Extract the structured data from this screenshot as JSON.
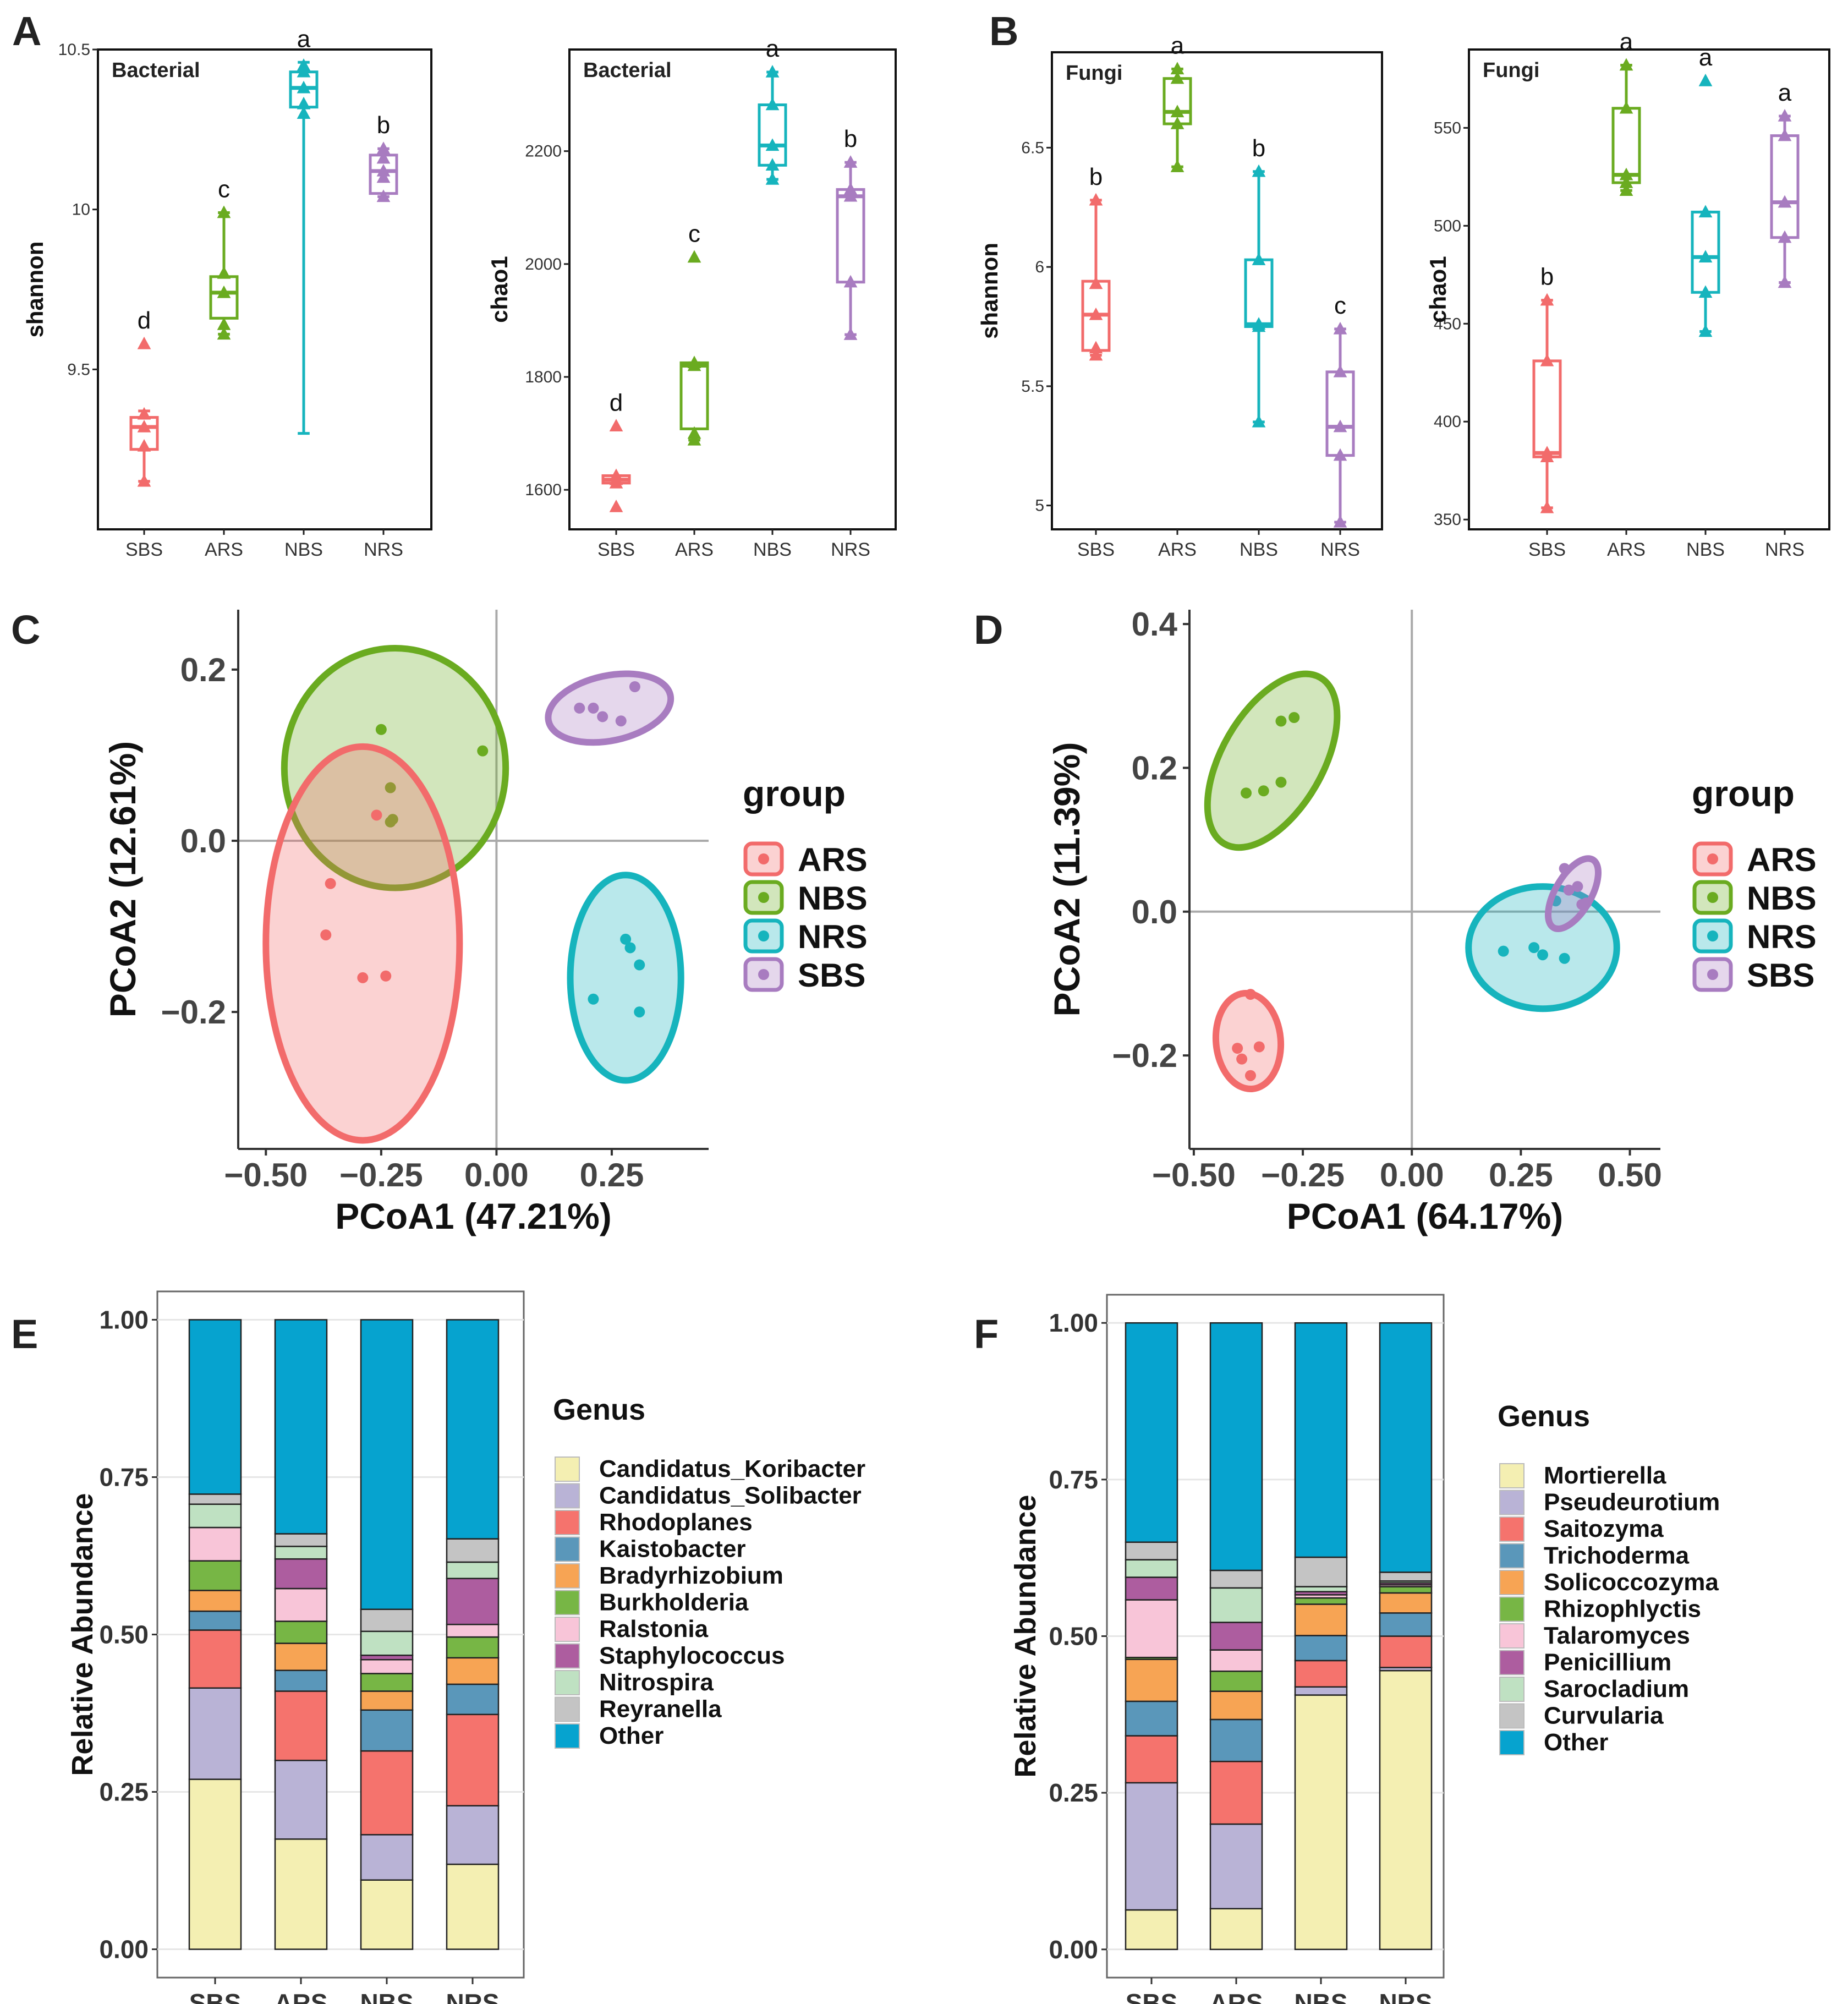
{
  "chart_data": [
    {
      "id": "A1",
      "type": "box",
      "panel_letter": "A",
      "title": "Bacterial",
      "ylabel": "shannon",
      "categories": [
        "SBS",
        "ARS",
        "NBS",
        "NRS"
      ],
      "ylim": [
        9.0,
        10.5
      ],
      "yticks": [
        9.5,
        10.0,
        10.5
      ],
      "boxes": [
        {
          "group": "SBS",
          "min": 9.15,
          "q1": 9.25,
          "median": 9.32,
          "q3": 9.35,
          "max": 9.37,
          "points": [
            9.15,
            9.26,
            9.32,
            9.36,
            9.58
          ],
          "letter": "d"
        },
        {
          "group": "ARS",
          "min": 9.61,
          "q1": 9.66,
          "median": 9.74,
          "q3": 9.79,
          "max": 9.99,
          "points": [
            9.61,
            9.64,
            9.74,
            9.8,
            9.99
          ],
          "letter": "c"
        },
        {
          "group": "NBS",
          "min": 9.3,
          "q1": 10.32,
          "median": 10.38,
          "q3": 10.43,
          "max": 10.46,
          "points": [
            10.3,
            10.33,
            10.38,
            10.43,
            10.45
          ],
          "letter": "a"
        },
        {
          "group": "NRS",
          "min": 10.04,
          "q1": 10.05,
          "median": 10.12,
          "q3": 10.17,
          "max": 10.19,
          "points": [
            10.04,
            10.1,
            10.12,
            10.16,
            10.19
          ],
          "letter": "b"
        }
      ]
    },
    {
      "id": "A2",
      "type": "box",
      "title": "Bacterial",
      "ylabel": "chao1",
      "categories": [
        "SBS",
        "ARS",
        "NBS",
        "NRS"
      ],
      "ylim": [
        1530,
        2380
      ],
      "yticks": [
        1600,
        1800,
        2000,
        2200
      ],
      "boxes": [
        {
          "group": "SBS",
          "min": 1612,
          "q1": 1612,
          "median": 1618,
          "q3": 1625,
          "max": 1625,
          "points": [
            1570,
            1612,
            1618,
            1625,
            1713
          ],
          "letter": "d"
        },
        {
          "group": "ARS",
          "min": 1688,
          "q1": 1708,
          "median": 1820,
          "q3": 1825,
          "max": 1825,
          "points": [
            1688,
            1700,
            1820,
            1825,
            2012
          ],
          "letter": "c"
        },
        {
          "group": "NBS",
          "min": 2150,
          "q1": 2175,
          "median": 2210,
          "q3": 2282,
          "max": 2340,
          "points": [
            2150,
            2175,
            2210,
            2282,
            2340
          ],
          "letter": "a"
        },
        {
          "group": "NRS",
          "min": 1875,
          "q1": 1968,
          "median": 2120,
          "q3": 2132,
          "max": 2180,
          "points": [
            1875,
            1968,
            2120,
            2132,
            2180
          ],
          "letter": "b"
        }
      ]
    },
    {
      "id": "B1",
      "type": "box",
      "panel_letter": "B",
      "title": "Fungi",
      "ylabel": "shannon",
      "categories": [
        "SBS",
        "ARS",
        "NBS",
        "NRS"
      ],
      "ylim": [
        4.9,
        6.9
      ],
      "yticks": [
        5.0,
        5.5,
        6.0,
        6.5
      ],
      "boxes": [
        {
          "group": "SBS",
          "min": 5.63,
          "q1": 5.65,
          "median": 5.8,
          "q3": 5.94,
          "max": 6.28,
          "points": [
            5.63,
            5.66,
            5.8,
            5.93,
            6.28
          ],
          "letter": "b"
        },
        {
          "group": "ARS",
          "min": 6.42,
          "q1": 6.6,
          "median": 6.65,
          "q3": 6.79,
          "max": 6.83,
          "points": [
            6.42,
            6.6,
            6.65,
            6.79,
            6.83
          ],
          "letter": "a"
        },
        {
          "group": "NBS",
          "min": 5.35,
          "q1": 5.75,
          "median": 5.76,
          "q3": 6.03,
          "max": 6.4,
          "points": [
            5.35,
            5.75,
            5.76,
            6.03,
            6.4
          ],
          "letter": "b"
        },
        {
          "group": "NRS",
          "min": 4.93,
          "q1": 5.21,
          "median": 5.33,
          "q3": 5.56,
          "max": 5.74,
          "points": [
            4.93,
            5.21,
            5.33,
            5.56,
            5.74
          ],
          "letter": "c"
        }
      ]
    },
    {
      "id": "B2",
      "type": "box",
      "title": "Fungi",
      "ylabel": "chao1",
      "categories": [
        "SBS",
        "ARS",
        "NBS",
        "NRS"
      ],
      "ylim": [
        345,
        590
      ],
      "yticks": [
        350,
        400,
        450,
        500,
        550
      ],
      "boxes": [
        {
          "group": "SBS",
          "min": 356,
          "q1": 382,
          "median": 384,
          "q3": 431,
          "max": 462,
          "points": [
            356,
            382,
            384,
            431,
            462
          ],
          "letter": "b"
        },
        {
          "group": "ARS",
          "min": 518,
          "q1": 522,
          "median": 526,
          "q3": 560,
          "max": 582,
          "points": [
            518,
            522,
            526,
            560,
            582
          ],
          "letter": "a"
        },
        {
          "group": "NBS",
          "min": 446,
          "q1": 466,
          "median": 484,
          "q3": 507,
          "max": 507,
          "points": [
            446,
            466,
            484,
            507,
            574
          ],
          "letter": "a"
        },
        {
          "group": "NRS",
          "min": 471,
          "q1": 494,
          "median": 512,
          "q3": 546,
          "max": 556,
          "points": [
            471,
            494,
            512,
            546,
            556
          ],
          "letter": "a"
        }
      ]
    },
    {
      "id": "C",
      "type": "scatter",
      "panel_letter": "C",
      "xlabel": "PCoA1 (47.21%)",
      "ylabel": "PCoA2 (12.61%)",
      "xlim": [
        -0.56,
        0.46
      ],
      "ylim": [
        -0.36,
        0.27
      ],
      "xticks": [
        -0.5,
        -0.25,
        0.0,
        0.25
      ],
      "yticks": [
        -0.2,
        0.0,
        0.2
      ],
      "xtick_labels": [
        "−0.50",
        "−0.25",
        "0.00",
        "0.25"
      ],
      "ytick_labels": [
        "−0.2",
        "0.0",
        "0.2"
      ],
      "legend_title": "group",
      "legend": [
        "ARS",
        "NBS",
        "NRS",
        "SBS"
      ],
      "series": [
        {
          "name": "ARS",
          "points": [
            [
              -0.25,
              0.13
            ],
            [
              -0.03,
              0.105
            ],
            [
              -0.23,
              0.062
            ],
            [
              -0.225,
              0.025
            ],
            [
              -0.23,
              0.022
            ]
          ],
          "ellipse": {
            "cx": -0.22,
            "cy": 0.085,
            "rx": 0.24,
            "ry": 0.14,
            "angle": 0
          }
        },
        {
          "name": "NBS",
          "points": [
            [
              0.28,
              -0.115
            ],
            [
              0.29,
              -0.125
            ],
            [
              0.31,
              -0.145
            ],
            [
              0.21,
              -0.185
            ],
            [
              0.31,
              -0.2
            ]
          ],
          "ellipse": {
            "cx": 0.28,
            "cy": -0.16,
            "rx": 0.12,
            "ry": 0.12,
            "angle": 0
          }
        },
        {
          "name": "NRS",
          "points": [
            [
              0.18,
              0.155
            ],
            [
              0.21,
              0.155
            ],
            [
              0.23,
              0.145
            ],
            [
              0.27,
              0.14
            ],
            [
              0.3,
              0.18
            ]
          ],
          "ellipse": {
            "cx": 0.245,
            "cy": 0.155,
            "rx": 0.135,
            "ry": 0.038,
            "angle": -12
          }
        },
        {
          "name": "SBS",
          "points": [
            [
              -0.36,
              -0.05
            ],
            [
              -0.37,
              -0.11
            ],
            [
              -0.29,
              -0.16
            ],
            [
              -0.24,
              -0.158
            ],
            [
              -0.26,
              0.03
            ]
          ],
          "ellipse": {
            "cx": -0.29,
            "cy": -0.12,
            "rx": 0.21,
            "ry": 0.23,
            "angle": 0
          }
        }
      ]
    },
    {
      "id": "D",
      "type": "scatter",
      "panel_letter": "D",
      "xlabel": "PCoA1 (64.17%)",
      "ylabel": "PCoA2 (11.39%)",
      "xlim": [
        -0.51,
        0.57
      ],
      "ylim": [
        -0.33,
        0.42
      ],
      "xticks": [
        -0.5,
        -0.25,
        0.0,
        0.25,
        0.5
      ],
      "yticks": [
        -0.2,
        0.0,
        0.2,
        0.4
      ],
      "xtick_labels": [
        "−0.50",
        "−0.25",
        "0.00",
        "0.25",
        "0.50"
      ],
      "ytick_labels": [
        "−0.2",
        "0.0",
        "0.2",
        "0.4"
      ],
      "legend_title": "group",
      "legend": [
        "ARS",
        "NBS",
        "NRS",
        "SBS"
      ],
      "series": [
        {
          "name": "ARS",
          "points": [
            [
              -0.3,
              0.265
            ],
            [
              -0.27,
              0.27
            ],
            [
              -0.38,
              0.165
            ],
            [
              -0.34,
              0.168
            ],
            [
              -0.3,
              0.18
            ]
          ],
          "ellipse": {
            "cx": -0.32,
            "cy": 0.21,
            "rx": 0.22,
            "ry": 0.07,
            "angle": -60
          }
        },
        {
          "name": "NBS",
          "points": [
            [
              0.21,
              -0.055
            ],
            [
              0.28,
              -0.05
            ],
            [
              0.3,
              -0.06
            ],
            [
              0.35,
              -0.065
            ],
            [
              0.33,
              0.015
            ]
          ],
          "ellipse": {
            "cx": 0.3,
            "cy": -0.05,
            "rx": 0.17,
            "ry": 0.085,
            "angle": 0
          }
        },
        {
          "name": "NRS",
          "points": [
            [
              0.35,
              0.06
            ],
            [
              0.38,
              0.035
            ],
            [
              0.39,
              0.01
            ],
            [
              0.4,
              0.012
            ],
            [
              0.36,
              0.03
            ]
          ],
          "ellipse": {
            "cx": 0.37,
            "cy": 0.025,
            "rx": 0.09,
            "ry": 0.025,
            "angle": -60
          }
        },
        {
          "name": "SBS",
          "points": [
            [
              -0.37,
              -0.115
            ],
            [
              -0.4,
              -0.19
            ],
            [
              -0.35,
              -0.188
            ],
            [
              -0.39,
              -0.205
            ],
            [
              -0.37,
              -0.228
            ]
          ],
          "ellipse": {
            "cx": -0.375,
            "cy": -0.18,
            "rx": 0.11,
            "ry": 0.045,
            "angle": -95
          }
        }
      ]
    },
    {
      "id": "E",
      "type": "stacked_bar",
      "panel_letter": "E",
      "ylabel": "Relative Abundance",
      "legend_title": "Genus",
      "categories": [
        "SBS",
        "ARS",
        "NBS",
        "NRS"
      ],
      "yticks": [
        0.0,
        0.25,
        0.5,
        0.75,
        1.0
      ],
      "ytick_labels": [
        "0.00",
        "0.25",
        "0.50",
        "0.75",
        "1.00"
      ],
      "series": [
        {
          "name": "Candidatus_Koribacter",
          "values": [
            0.27,
            0.175,
            0.11,
            0.135
          ]
        },
        {
          "name": "Candidatus_Solibacter",
          "values": [
            0.145,
            0.125,
            0.072,
            0.093
          ]
        },
        {
          "name": "Rhodoplanes",
          "values": [
            0.092,
            0.11,
            0.133,
            0.145
          ]
        },
        {
          "name": "Kaistobacter",
          "values": [
            0.03,
            0.033,
            0.065,
            0.048
          ]
        },
        {
          "name": "Bradyrhizobium",
          "values": [
            0.033,
            0.043,
            0.03,
            0.042
          ]
        },
        {
          "name": "Burkholderia",
          "values": [
            0.047,
            0.035,
            0.028,
            0.033
          ]
        },
        {
          "name": "Ralstonia",
          "values": [
            0.053,
            0.052,
            0.022,
            0.02
          ]
        },
        {
          "name": "Staphylococcus",
          "values": [
            0.0,
            0.047,
            0.007,
            0.073
          ]
        },
        {
          "name": "Nitrospira",
          "values": [
            0.037,
            0.02,
            0.038,
            0.026
          ]
        },
        {
          "name": "Reyranella",
          "values": [
            0.016,
            0.02,
            0.035,
            0.037
          ]
        },
        {
          "name": "Other",
          "values": [
            0.277,
            0.34,
            0.46,
            0.348
          ]
        }
      ]
    },
    {
      "id": "F",
      "type": "stacked_bar",
      "panel_letter": "F",
      "ylabel": "Relative Abundance",
      "legend_title": "Genus",
      "categories": [
        "SBS",
        "ARS",
        "NBS",
        "NRS"
      ],
      "yticks": [
        0.0,
        0.25,
        0.5,
        0.75,
        1.0
      ],
      "ytick_labels": [
        "0.00",
        "0.25",
        "0.50",
        "0.75",
        "1.00"
      ],
      "series": [
        {
          "name": "Mortierella",
          "values": [
            0.063,
            0.065,
            0.406,
            0.445
          ]
        },
        {
          "name": "Pseudeurotium",
          "values": [
            0.203,
            0.135,
            0.013,
            0.005
          ]
        },
        {
          "name": "Saitozyma",
          "values": [
            0.075,
            0.1,
            0.042,
            0.05
          ]
        },
        {
          "name": "Trichoderma",
          "values": [
            0.055,
            0.067,
            0.04,
            0.037
          ]
        },
        {
          "name": "Solicoccozyma",
          "values": [
            0.067,
            0.045,
            0.05,
            0.032
          ]
        },
        {
          "name": "Rhizophlyctis",
          "values": [
            0.003,
            0.032,
            0.01,
            0.01
          ]
        },
        {
          "name": "Talaromyces",
          "values": [
            0.092,
            0.034,
            0.005,
            0.003
          ]
        },
        {
          "name": "Penicillium",
          "values": [
            0.036,
            0.044,
            0.005,
            0.003
          ]
        },
        {
          "name": "Sarocladium",
          "values": [
            0.028,
            0.055,
            0.008,
            0.003
          ]
        },
        {
          "name": "Curvularia",
          "values": [
            0.028,
            0.028,
            0.047,
            0.014
          ]
        },
        {
          "name": "Other",
          "values": [
            0.35,
            0.395,
            0.374,
            0.398
          ]
        }
      ]
    }
  ],
  "colors": {
    "ARS": "#6aab20",
    "NBS": "#16b4bd",
    "NRS": "#a87cc0",
    "SBS": "#f26b6b",
    "legend_ARS": "#f26b6b",
    "legend_NBS": "#6aab20",
    "legend_NRS": "#16b4bd",
    "legend_SBS": "#a87cc0",
    "stack": [
      "#f4efb2",
      "#b9b3d6",
      "#f5736d",
      "#5a97ba",
      "#f7a454",
      "#77b645",
      "#f8c5d8",
      "#ad5d9f",
      "#bfe1c2",
      "#c4c4c4",
      "#06a3cf"
    ]
  }
}
